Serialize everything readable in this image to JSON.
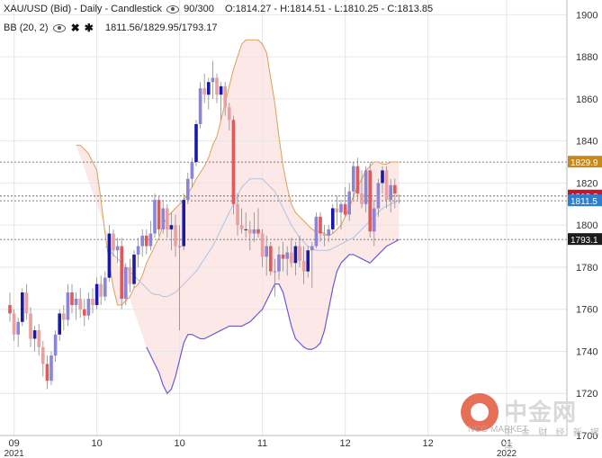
{
  "header": {
    "symbol_line": "XAU/USD (Bid) - Daily - Candlestick",
    "range": "90/300",
    "ohlc": "O:1814.27 - H:1814.51 - L:1810.25 - C:1813.85",
    "indicator": "BB (20, 2)",
    "indicator_values": "1811.56/1829.95/1793.17"
  },
  "watermark": {
    "cn": "中金网",
    "sub": "中 金 财 经 新 媒 体",
    "en": "NCG MARKET"
  },
  "colors": {
    "up": "#1a1aa8",
    "up_light": "#8a85d8",
    "down": "#e05a5a",
    "down_light": "#e8a0a0",
    "band_fill": "#fde8e8",
    "upper_band": "#d6a25a",
    "lower_band": "#6a5ad6",
    "middle_band": "#a9c4e8",
    "upper_label": "#c8891c",
    "close_label": "#c0192a",
    "middle_label": "#2a7fd4",
    "lower_label": "#1c1c1c"
  },
  "chart_data": {
    "type": "candlestick",
    "title": "XAU/USD (Bid) - Daily - Candlestick",
    "ylim": [
      1700,
      1907
    ],
    "y_ticks": [
      1700,
      1720,
      1740,
      1760,
      1780,
      1800,
      1820,
      1840,
      1860,
      1880,
      1900
    ],
    "x_labels": [
      {
        "label": "09",
        "sub": "2021",
        "index": 1
      },
      {
        "label": "10",
        "sub": "",
        "index": 21
      },
      {
        "label": "10",
        "sub": "",
        "index": 41
      },
      {
        "label": "11",
        "sub": "",
        "index": 61
      },
      {
        "label": "12",
        "sub": "",
        "index": 81
      },
      {
        "label": "12",
        "sub": "",
        "index": 101
      },
      {
        "label": "01",
        "sub": "2022",
        "index": 120
      }
    ],
    "value_labels": [
      {
        "name": "upper",
        "value": 1829.95,
        "text": "1829.9"
      },
      {
        "name": "close",
        "value": 1813.85,
        "text": "1813.8"
      },
      {
        "name": "middle",
        "value": 1811.56,
        "text": "1811.5"
      },
      {
        "name": "lower",
        "value": 1793.17,
        "text": "1793.1"
      }
    ],
    "candles": [
      [
        1762,
        1768,
        1754,
        1758
      ],
      [
        1758,
        1760,
        1745,
        1748
      ],
      [
        1748,
        1756,
        1742,
        1754
      ],
      [
        1754,
        1770,
        1752,
        1768
      ],
      [
        1768,
        1772,
        1755,
        1758
      ],
      [
        1758,
        1761,
        1742,
        1746
      ],
      [
        1746,
        1752,
        1740,
        1750
      ],
      [
        1750,
        1753,
        1738,
        1742
      ],
      [
        1742,
        1745,
        1728,
        1734
      ],
      [
        1734,
        1738,
        1722,
        1726
      ],
      [
        1726,
        1740,
        1724,
        1738
      ],
      [
        1738,
        1750,
        1735,
        1748
      ],
      [
        1748,
        1760,
        1745,
        1758
      ],
      [
        1758,
        1762,
        1750,
        1755
      ],
      [
        1755,
        1772,
        1752,
        1768
      ],
      [
        1768,
        1772,
        1758,
        1762
      ],
      [
        1762,
        1768,
        1755,
        1765
      ],
      [
        1765,
        1770,
        1756,
        1760
      ],
      [
        1760,
        1765,
        1752,
        1757
      ],
      [
        1757,
        1768,
        1755,
        1765
      ],
      [
        1765,
        1770,
        1758,
        1762
      ],
      [
        1762,
        1775,
        1760,
        1772
      ],
      [
        1772,
        1776,
        1762,
        1766
      ],
      [
        1766,
        1778,
        1764,
        1775
      ],
      [
        1775,
        1800,
        1773,
        1796
      ],
      [
        1796,
        1798,
        1785,
        1788
      ],
      [
        1788,
        1794,
        1782,
        1790
      ],
      [
        1790,
        1794,
        1760,
        1765
      ],
      [
        1765,
        1782,
        1762,
        1780
      ],
      [
        1780,
        1784,
        1768,
        1772
      ],
      [
        1772,
        1788,
        1770,
        1786
      ],
      [
        1786,
        1794,
        1780,
        1790
      ],
      [
        1790,
        1798,
        1785,
        1795
      ],
      [
        1795,
        1798,
        1786,
        1790
      ],
      [
        1790,
        1802,
        1788,
        1796
      ],
      [
        1796,
        1815,
        1794,
        1812
      ],
      [
        1812,
        1814,
        1795,
        1798
      ],
      [
        1798,
        1812,
        1796,
        1808
      ],
      [
        1808,
        1810,
        1794,
        1798
      ],
      [
        1798,
        1806,
        1788,
        1800
      ],
      [
        1800,
        1805,
        1785,
        1790
      ],
      [
        1790,
        1800,
        1750,
        1790
      ],
      [
        1790,
        1815,
        1788,
        1812
      ],
      [
        1812,
        1825,
        1810,
        1822
      ],
      [
        1822,
        1832,
        1818,
        1830
      ],
      [
        1830,
        1850,
        1828,
        1848
      ],
      [
        1848,
        1868,
        1846,
        1865
      ],
      [
        1865,
        1872,
        1858,
        1862
      ],
      [
        1862,
        1870,
        1855,
        1868
      ],
      [
        1868,
        1878,
        1860,
        1870
      ],
      [
        1870,
        1872,
        1858,
        1862
      ],
      [
        1862,
        1868,
        1850,
        1866
      ],
      [
        1866,
        1868,
        1852,
        1856
      ],
      [
        1856,
        1858,
        1845,
        1850
      ],
      [
        1850,
        1852,
        1805,
        1810
      ],
      [
        1810,
        1815,
        1795,
        1800
      ],
      [
        1800,
        1808,
        1796,
        1798
      ],
      [
        1798,
        1806,
        1794,
        1798
      ],
      [
        1798,
        1802,
        1788,
        1796
      ],
      [
        1796,
        1806,
        1792,
        1798
      ],
      [
        1798,
        1808,
        1794,
        1796
      ],
      [
        1796,
        1798,
        1780,
        1785
      ],
      [
        1785,
        1795,
        1776,
        1790
      ],
      [
        1790,
        1792,
        1776,
        1778
      ],
      [
        1778,
        1784,
        1766,
        1778
      ],
      [
        1778,
        1790,
        1774,
        1786
      ],
      [
        1786,
        1792,
        1778,
        1784
      ],
      [
        1784,
        1790,
        1776,
        1787
      ],
      [
        1787,
        1794,
        1780,
        1782
      ],
      [
        1782,
        1792,
        1776,
        1790
      ],
      [
        1790,
        1795,
        1780,
        1783
      ],
      [
        1783,
        1790,
        1772,
        1778
      ],
      [
        1778,
        1790,
        1775,
        1788
      ],
      [
        1788,
        1792,
        1770,
        1790
      ],
      [
        1790,
        1806,
        1789,
        1804
      ],
      [
        1804,
        1806,
        1792,
        1796
      ],
      [
        1796,
        1800,
        1790,
        1795
      ],
      [
        1795,
        1800,
        1792,
        1798
      ],
      [
        1798,
        1810,
        1796,
        1808
      ],
      [
        1808,
        1814,
        1800,
        1806
      ],
      [
        1806,
        1812,
        1798,
        1810
      ],
      [
        1810,
        1818,
        1804,
        1805
      ],
      [
        1805,
        1820,
        1802,
        1816
      ],
      [
        1816,
        1830,
        1812,
        1828
      ],
      [
        1828,
        1832,
        1812,
        1815
      ],
      [
        1815,
        1826,
        1808,
        1810
      ],
      [
        1810,
        1828,
        1806,
        1826
      ],
      [
        1826,
        1830,
        1794,
        1797
      ],
      [
        1797,
        1812,
        1790,
        1808
      ],
      [
        1808,
        1822,
        1804,
        1820
      ],
      [
        1820,
        1828,
        1815,
        1826
      ],
      [
        1826,
        1828,
        1808,
        1812
      ],
      [
        1812,
        1822,
        1806,
        1819
      ],
      [
        1819,
        1822,
        1808,
        1815
      ],
      [
        1814.27,
        1814.51,
        1810.25,
        1813.85
      ]
    ],
    "upper_band": [
      1838,
      1838,
      1836,
      1834,
      1830,
      1826,
      1812,
      1796,
      1782,
      1770,
      1762,
      1762,
      1764,
      1766,
      1770,
      1772,
      1776,
      1782,
      1786,
      1790,
      1794,
      1800,
      1804,
      1806,
      1808,
      1810,
      1812,
      1815,
      1818,
      1822,
      1825,
      1828,
      1832,
      1838,
      1842,
      1850,
      1858,
      1866,
      1874,
      1880,
      1886,
      1888,
      1888,
      1888,
      1888,
      1886,
      1882,
      1870,
      1858,
      1842,
      1828,
      1818,
      1810,
      1806,
      1804,
      1802,
      1800,
      1798,
      1797,
      1797,
      1796,
      1795,
      1796,
      1798,
      1800,
      1804,
      1808,
      1814,
      1818,
      1822,
      1826,
      1828,
      1830,
      1830,
      1829,
      1829,
      1830,
      1830,
      1829.95
    ],
    "middle_band": [
      1790,
      1788,
      1786,
      1784,
      1782,
      1780,
      1778,
      1776,
      1774,
      1772,
      1770,
      1768,
      1767,
      1767,
      1766,
      1766,
      1767,
      1768,
      1770,
      1772,
      1774,
      1776,
      1778,
      1781,
      1784,
      1787,
      1790,
      1794,
      1798,
      1802,
      1806,
      1810,
      1814,
      1818,
      1820,
      1822,
      1822,
      1822,
      1822,
      1820,
      1818,
      1816,
      1812,
      1808,
      1804,
      1800,
      1797,
      1794,
      1792,
      1790,
      1789,
      1788,
      1788,
      1788,
      1788,
      1789,
      1790,
      1791,
      1792,
      1793,
      1794,
      1796,
      1798,
      1800,
      1802,
      1804,
      1806,
      1808,
      1809,
      1810,
      1811,
      1811.56
    ],
    "lower_band": [
      1742,
      1738,
      1734,
      1730,
      1724,
      1720,
      1722,
      1728,
      1736,
      1744,
      1748,
      1748,
      1747,
      1746,
      1746,
      1747,
      1748,
      1749,
      1750,
      1751,
      1752,
      1752,
      1752,
      1752,
      1753,
      1754,
      1756,
      1758,
      1760,
      1764,
      1768,
      1772,
      1772,
      1768,
      1760,
      1752,
      1746,
      1744,
      1742,
      1741,
      1741,
      1742,
      1744,
      1750,
      1760,
      1770,
      1778,
      1782,
      1784,
      1786,
      1786,
      1785,
      1784,
      1783,
      1782,
      1784,
      1786,
      1788,
      1790,
      1791,
      1792,
      1793.17
    ]
  }
}
